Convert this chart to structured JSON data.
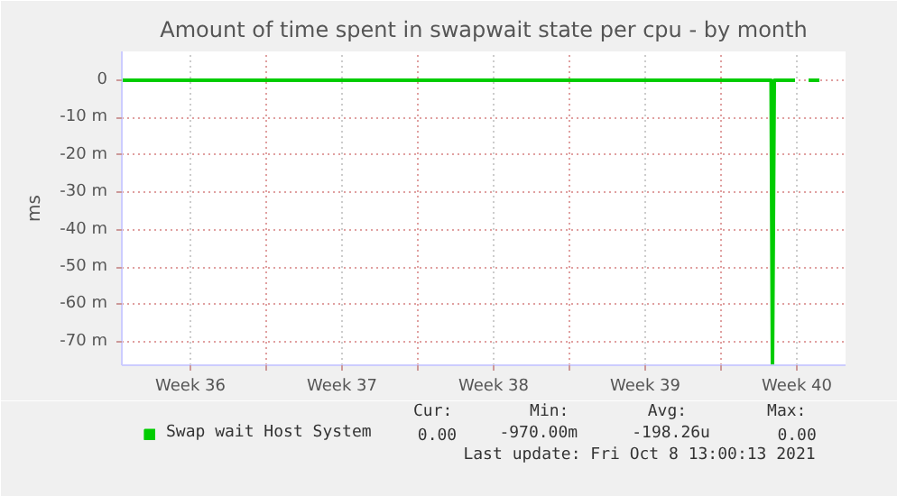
{
  "chart_data": {
    "type": "line",
    "title": "Amount of time spent in swapwait state per cpu - by month",
    "ylabel": "ms",
    "xlim": [
      "2021-09-06T08:00",
      "2021-10-09T18:00"
    ],
    "ylim": [
      -76.3,
      7.7
    ],
    "xticks": [
      {
        "value": "2021-09-09T12:00",
        "label": "Week 36"
      },
      {
        "value": "2021-09-13",
        "label": null
      },
      {
        "value": "2021-09-16T12:00",
        "label": "Week 37"
      },
      {
        "value": "2021-09-20",
        "label": null
      },
      {
        "value": "2021-09-23T12:00",
        "label": "Week 38"
      },
      {
        "value": "2021-09-27",
        "label": null
      },
      {
        "value": "2021-09-30T12:00",
        "label": "Week 39"
      },
      {
        "value": "2021-10-04",
        "label": null
      },
      {
        "value": "2021-10-07T12:00",
        "label": "Week 40"
      }
    ],
    "yticks": [
      {
        "value": 0,
        "label": "0"
      },
      {
        "value": -10,
        "label": "-10 m"
      },
      {
        "value": -20,
        "label": "-20 m"
      },
      {
        "value": -30,
        "label": "-30 m"
      },
      {
        "value": -40,
        "label": "-40 m"
      },
      {
        "value": -50,
        "label": "-50 m"
      },
      {
        "value": -60,
        "label": "-60 m"
      },
      {
        "value": -70,
        "label": "-70 m"
      }
    ],
    "grid": true,
    "legend": "bottom left",
    "series": [
      {
        "name": "Swap wait Host System",
        "color": "#00cc00",
        "x": [
          "2021-09-06T08:00",
          "2021-10-06T07:30",
          "2021-10-06T09:00",
          "2021-10-06T11:00",
          "2021-10-07T10:00",
          "2021-10-07T15:00",
          "2021-10-08T01:00",
          "2021-10-08T13:00"
        ],
        "values": [
          0,
          0,
          -76.3,
          0,
          0,
          null,
          0,
          0
        ]
      }
    ],
    "annotations": [
      "Cur:",
      "Min:",
      "Avg:",
      "Max:",
      "0.00",
      "-970.00m",
      "-198.26u",
      "0.00",
      "Last update: Fri Oct  8 13:00:13 2021"
    ]
  }
}
